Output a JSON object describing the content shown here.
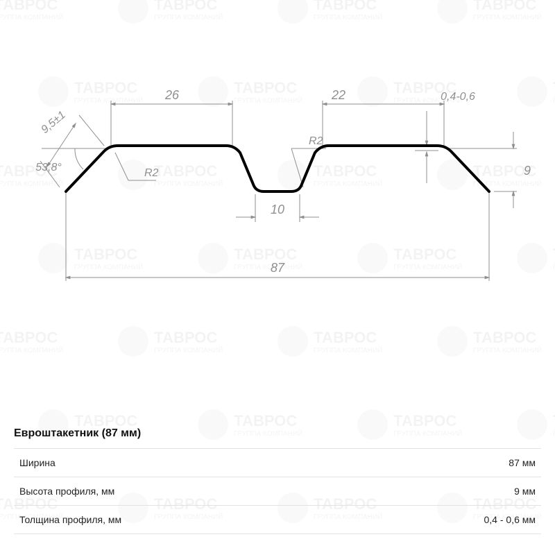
{
  "watermark": {
    "brand": "ТАВРОС",
    "sub": "ГРУППА КОМПАНИЙ"
  },
  "colors": {
    "profile_stroke": "#000000",
    "dim_stroke": "#8f8f8f",
    "table_border": "#e2e2e2",
    "background": "#ffffff"
  },
  "diagram": {
    "type": "technical-profile",
    "profile_stroke_width": 4,
    "dimensions": {
      "overall_width": "87",
      "flat_left": "26",
      "flat_right": "22",
      "valley_bottom": "10",
      "height_right": "9",
      "thickness": "0,4-0,6",
      "side_len": "9,5±1",
      "side_angle": "53,8°",
      "radius": "R2"
    }
  },
  "table": {
    "title": "Евроштакетник (87 мм)",
    "rows": [
      {
        "label": "Ширина",
        "value": "87 мм"
      },
      {
        "label": "Высота профиля, мм",
        "value": "9 мм"
      },
      {
        "label": "Толщина профиля, мм",
        "value": "0,4 - 0,6 мм"
      }
    ]
  }
}
